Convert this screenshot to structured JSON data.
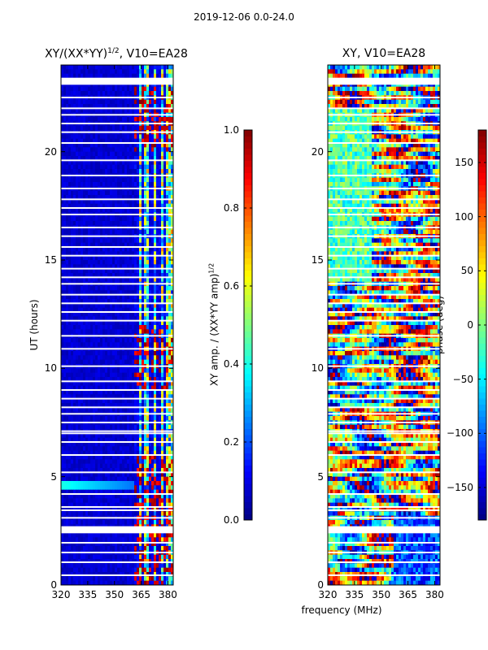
{
  "figure": {
    "suptitle": "2019-12-06 0.0-24.0",
    "shared_xlabel": "frequency (MHz)"
  },
  "chart_data": [
    {
      "type": "heatmap",
      "title_main": "XY/(XX*YY)",
      "title_sup": "1/2",
      "title_tail": ", V10=EA28",
      "xlabel": "",
      "ylabel": "UT (hours)",
      "xlim": [
        320,
        383
      ],
      "ylim": [
        0,
        24
      ],
      "xticks": [
        "320",
        "335",
        "350",
        "365",
        "380"
      ],
      "xtick_values": [
        320,
        335,
        350,
        365,
        380
      ],
      "yticks": [
        "0",
        "5",
        "10",
        "15",
        "20"
      ],
      "ytick_values": [
        0,
        5,
        10,
        15,
        20
      ],
      "colorbar": {
        "label_main": "XY amp. / (XX*YY amp)",
        "label_sup": "1/2",
        "range": [
          0.0,
          1.0
        ],
        "ticks": [
          "0.0",
          "0.2",
          "0.4",
          "0.6",
          "0.8",
          "1.0"
        ],
        "tick_values": [
          0.0,
          0.2,
          0.4,
          0.6,
          0.8,
          1.0
        ],
        "colormap": "jet"
      },
      "low_band_value": 0.05,
      "high_band_start_mhz": 361,
      "high_band_mean_value": 0.45
    },
    {
      "type": "heatmap",
      "title": "XY, V10=EA28",
      "xlabel": "frequency (MHz)",
      "ylabel": "",
      "xlim": [
        320,
        383
      ],
      "ylim": [
        0,
        24
      ],
      "xticks": [
        "320",
        "335",
        "350",
        "365",
        "380"
      ],
      "xtick_values": [
        320,
        335,
        350,
        365,
        380
      ],
      "yticks": [
        "0",
        "5",
        "10",
        "15",
        "20"
      ],
      "ytick_values": [
        0,
        5,
        10,
        15,
        20
      ],
      "colorbar": {
        "label": "phase (deg)",
        "range": [
          -180,
          180
        ],
        "ticks": [
          "−150",
          "−100",
          "−50",
          "0",
          "50",
          "100",
          "150"
        ],
        "tick_values": [
          -150,
          -100,
          -50,
          0,
          50,
          100,
          150
        ],
        "colormap": "jet"
      },
      "phase_range": [
        -180,
        180
      ]
    }
  ],
  "flagged_ut_hours": [
    0.45,
    1.05,
    1.5,
    1.95,
    2.5,
    2.6,
    3.1,
    3.45,
    3.6,
    4.2,
    5.2,
    6.0,
    6.6,
    7.0,
    7.1,
    7.5,
    7.9,
    8.2,
    8.6,
    9.0,
    9.4,
    10.1,
    10.9,
    11.5,
    12.2,
    12.6,
    13.0,
    13.4,
    13.9,
    14.2,
    14.6,
    15.2,
    15.6,
    16.1,
    16.5,
    17.1,
    17.4,
    17.8,
    18.3,
    18.9,
    19.6,
    20.4,
    20.9,
    21.3,
    21.7,
    22.0,
    22.5,
    23.2,
    23.3
  ],
  "vertical_stripe_mhz": [
    362.5,
    366.2,
    370.5,
    374.6,
    378.4
  ]
}
